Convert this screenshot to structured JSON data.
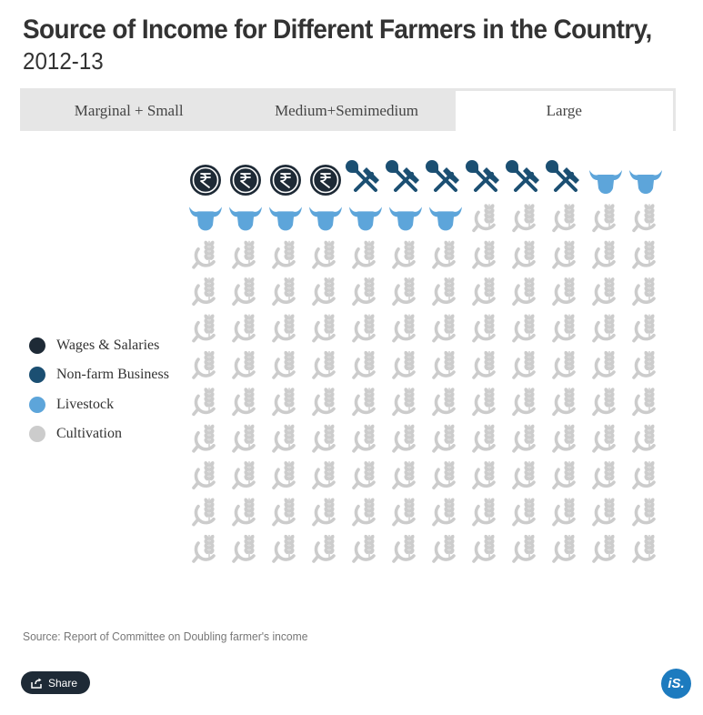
{
  "header": {
    "title": "Source of Income for Different Farmers in the Country,",
    "subtitle": "2012-13"
  },
  "tabs": [
    {
      "label": "Marginal + Small",
      "active": false
    },
    {
      "label": "Medium+Semimedium",
      "active": false
    },
    {
      "label": "Large",
      "active": true
    }
  ],
  "legend": [
    {
      "label": "Wages & Salaries",
      "color": "#1e2a36"
    },
    {
      "label": "Non-farm Business",
      "color": "#1b4f72"
    },
    {
      "label": "Livestock",
      "color": "#5da5da"
    },
    {
      "label": "Cultivation",
      "color": "#cccccc"
    }
  ],
  "chart_data": {
    "type": "waffle",
    "total_units": 132,
    "columns": 12,
    "rows": 11,
    "categories": [
      "Wages & Salaries",
      "Non-farm Business",
      "Livestock",
      "Cultivation"
    ],
    "values": [
      4,
      6,
      9,
      113
    ],
    "icons": [
      "rupee-coin-icon",
      "hammer-wrench-icon",
      "cow-head-icon",
      "wheat-sickle-icon"
    ],
    "colors": [
      "#1e2a36",
      "#1b4f72",
      "#5da5da",
      "#cccccc"
    ]
  },
  "footer": {
    "source": "Source: Report of Committee on Doubling farmer's income",
    "share_label": "Share",
    "logo_text": "iS."
  }
}
